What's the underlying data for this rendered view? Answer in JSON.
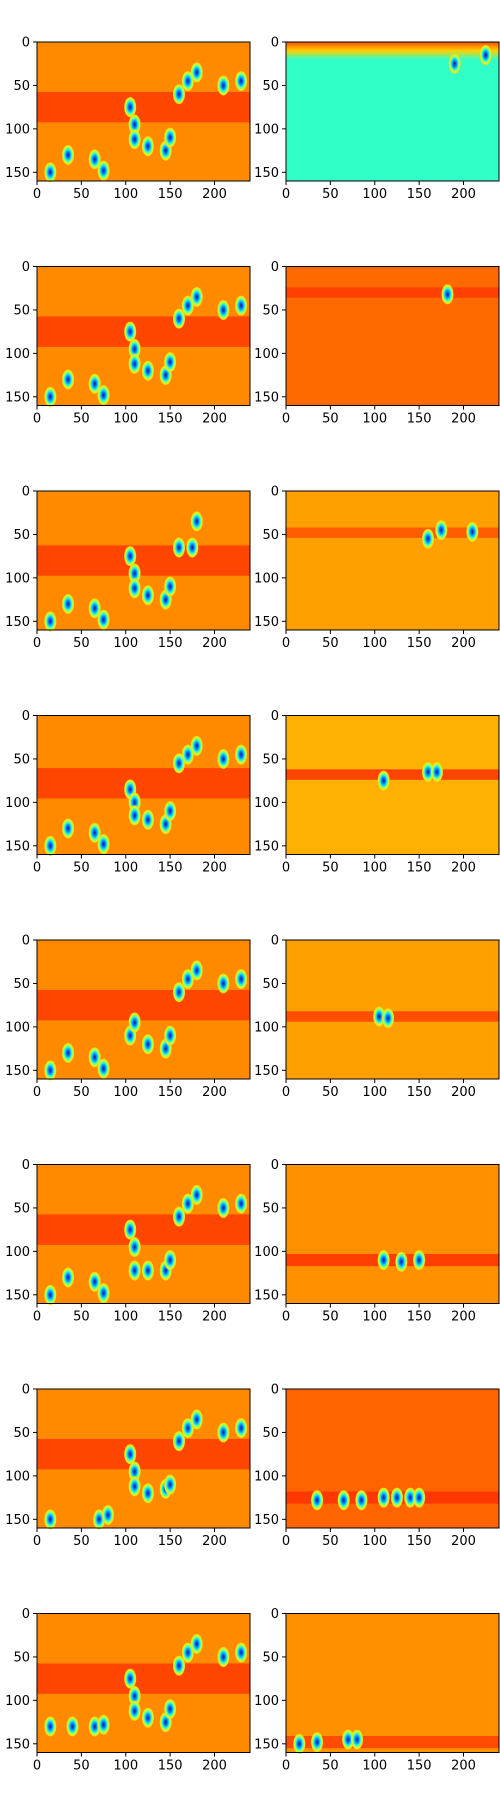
{
  "chart_data": {
    "type": "heatmap",
    "layout": {
      "rows": 8,
      "columns": 2
    },
    "colormap": "jet",
    "image_size": {
      "width": 240,
      "height": 160
    },
    "axis": {
      "xlim": [
        0,
        240
      ],
      "ylim": [
        160,
        0
      ],
      "x_ticks": [
        0,
        50,
        100,
        150,
        200
      ],
      "y_ticks": [
        0,
        50,
        100,
        150
      ]
    },
    "panels": [
      {
        "row": 1,
        "col": 1,
        "background": "#ff8a00",
        "band": {
          "y_center": 75,
          "width": 35,
          "color": "#ff3a00"
        },
        "blobs": [
          [
            15,
            150
          ],
          [
            35,
            130
          ],
          [
            65,
            135
          ],
          [
            75,
            148
          ],
          [
            105,
            75
          ],
          [
            110,
            95
          ],
          [
            110,
            112
          ],
          [
            125,
            120
          ],
          [
            145,
            125
          ],
          [
            150,
            110
          ],
          [
            160,
            60
          ],
          [
            170,
            45
          ],
          [
            180,
            35
          ],
          [
            210,
            50
          ],
          [
            230,
            45
          ]
        ]
      },
      {
        "row": 1,
        "col": 2,
        "background": "#30ffc8",
        "top_strip": {
          "y_range": [
            0,
            20
          ],
          "color": "#ff6a00"
        },
        "blobs": [
          [
            190,
            25
          ],
          [
            225,
            15
          ]
        ]
      },
      {
        "row": 2,
        "col": 1,
        "background": "#ff8a00",
        "band": {
          "y_center": 75,
          "width": 35,
          "color": "#ff3a00"
        },
        "blobs": [
          [
            15,
            150
          ],
          [
            35,
            130
          ],
          [
            65,
            135
          ],
          [
            75,
            148
          ],
          [
            105,
            75
          ],
          [
            110,
            95
          ],
          [
            110,
            112
          ],
          [
            125,
            120
          ],
          [
            145,
            125
          ],
          [
            150,
            110
          ],
          [
            160,
            60
          ],
          [
            170,
            45
          ],
          [
            180,
            35
          ],
          [
            210,
            50
          ],
          [
            230,
            45
          ]
        ]
      },
      {
        "row": 2,
        "col": 2,
        "background": "#ff6a00",
        "band": {
          "y_center": 30,
          "width": 12,
          "color": "#ff3a00"
        },
        "blobs": [
          [
            182,
            32
          ]
        ]
      },
      {
        "row": 3,
        "col": 1,
        "background": "#ff8a00",
        "band": {
          "y_center": 80,
          "width": 35,
          "color": "#ff3a00"
        },
        "blobs": [
          [
            15,
            150
          ],
          [
            35,
            130
          ],
          [
            65,
            135
          ],
          [
            75,
            148
          ],
          [
            105,
            75
          ],
          [
            110,
            95
          ],
          [
            110,
            112
          ],
          [
            125,
            120
          ],
          [
            145,
            125
          ],
          [
            150,
            110
          ],
          [
            160,
            65
          ],
          [
            175,
            65
          ],
          [
            180,
            35
          ]
        ]
      },
      {
        "row": 3,
        "col": 2,
        "background": "#ffa000",
        "band": {
          "y_center": 48,
          "width": 12,
          "color": "#ff5000"
        },
        "blobs": [
          [
            160,
            55
          ],
          [
            175,
            45
          ],
          [
            210,
            47
          ]
        ]
      },
      {
        "row": 4,
        "col": 1,
        "background": "#ff8a00",
        "band": {
          "y_center": 78,
          "width": 35,
          "color": "#ff3a00"
        },
        "blobs": [
          [
            15,
            150
          ],
          [
            35,
            130
          ],
          [
            65,
            135
          ],
          [
            75,
            148
          ],
          [
            105,
            85
          ],
          [
            110,
            100
          ],
          [
            110,
            115
          ],
          [
            125,
            120
          ],
          [
            145,
            125
          ],
          [
            150,
            110
          ],
          [
            160,
            55
          ],
          [
            170,
            45
          ],
          [
            180,
            35
          ],
          [
            210,
            50
          ],
          [
            230,
            45
          ]
        ]
      },
      {
        "row": 4,
        "col": 2,
        "background": "#ffb000",
        "band": {
          "y_center": 68,
          "width": 12,
          "color": "#ff3000"
        },
        "blobs": [
          [
            110,
            75
          ],
          [
            160,
            65
          ],
          [
            170,
            65
          ]
        ]
      },
      {
        "row": 5,
        "col": 1,
        "background": "#ff8a00",
        "band": {
          "y_center": 75,
          "width": 35,
          "color": "#ff3a00"
        },
        "blobs": [
          [
            15,
            150
          ],
          [
            35,
            130
          ],
          [
            65,
            135
          ],
          [
            75,
            148
          ],
          [
            105,
            110
          ],
          [
            110,
            95
          ],
          [
            125,
            120
          ],
          [
            145,
            125
          ],
          [
            150,
            110
          ],
          [
            160,
            60
          ],
          [
            170,
            45
          ],
          [
            180,
            35
          ],
          [
            210,
            50
          ],
          [
            230,
            45
          ]
        ]
      },
      {
        "row": 5,
        "col": 2,
        "background": "#ffa000",
        "band": {
          "y_center": 88,
          "width": 12,
          "color": "#ff4000"
        },
        "blobs": [
          [
            105,
            88
          ],
          [
            115,
            90
          ]
        ]
      },
      {
        "row": 6,
        "col": 1,
        "background": "#ff8a00",
        "band": {
          "y_center": 75,
          "width": 35,
          "color": "#ff3a00"
        },
        "blobs": [
          [
            15,
            150
          ],
          [
            35,
            130
          ],
          [
            65,
            135
          ],
          [
            75,
            148
          ],
          [
            105,
            75
          ],
          [
            110,
            95
          ],
          [
            110,
            122
          ],
          [
            125,
            122
          ],
          [
            145,
            122
          ],
          [
            150,
            110
          ],
          [
            160,
            60
          ],
          [
            170,
            45
          ],
          [
            180,
            35
          ],
          [
            210,
            50
          ],
          [
            230,
            45
          ]
        ]
      },
      {
        "row": 6,
        "col": 2,
        "background": "#ff9000",
        "band": {
          "y_center": 110,
          "width": 14,
          "color": "#ff3000"
        },
        "blobs": [
          [
            110,
            110
          ],
          [
            130,
            112
          ],
          [
            150,
            110
          ]
        ]
      },
      {
        "row": 7,
        "col": 1,
        "background": "#ff8a00",
        "band": {
          "y_center": 75,
          "width": 35,
          "color": "#ff3a00"
        },
        "blobs": [
          [
            15,
            150
          ],
          [
            70,
            150
          ],
          [
            80,
            145
          ],
          [
            105,
            75
          ],
          [
            110,
            95
          ],
          [
            110,
            112
          ],
          [
            125,
            120
          ],
          [
            145,
            115
          ],
          [
            150,
            110
          ],
          [
            160,
            60
          ],
          [
            170,
            45
          ],
          [
            180,
            35
          ],
          [
            210,
            50
          ],
          [
            230,
            45
          ]
        ]
      },
      {
        "row": 7,
        "col": 2,
        "background": "#ff6400",
        "band": {
          "y_center": 125,
          "width": 14,
          "color": "#ff3000"
        },
        "blobs": [
          [
            35,
            128
          ],
          [
            65,
            128
          ],
          [
            85,
            128
          ],
          [
            110,
            125
          ],
          [
            125,
            125
          ],
          [
            140,
            125
          ],
          [
            150,
            125
          ]
        ]
      },
      {
        "row": 8,
        "col": 1,
        "background": "#ff8a00",
        "band": {
          "y_center": 75,
          "width": 35,
          "color": "#ff3a00"
        },
        "blobs": [
          [
            15,
            130
          ],
          [
            40,
            130
          ],
          [
            65,
            130
          ],
          [
            75,
            128
          ],
          [
            105,
            75
          ],
          [
            110,
            95
          ],
          [
            110,
            112
          ],
          [
            125,
            120
          ],
          [
            145,
            125
          ],
          [
            150,
            110
          ],
          [
            160,
            60
          ],
          [
            170,
            45
          ],
          [
            180,
            35
          ],
          [
            210,
            50
          ],
          [
            230,
            45
          ]
        ]
      },
      {
        "row": 8,
        "col": 2,
        "background": "#ff9000",
        "band": {
          "y_center": 148,
          "width": 14,
          "color": "#ff4000"
        },
        "blobs": [
          [
            15,
            150
          ],
          [
            35,
            148
          ],
          [
            70,
            145
          ],
          [
            80,
            145
          ]
        ]
      }
    ]
  }
}
